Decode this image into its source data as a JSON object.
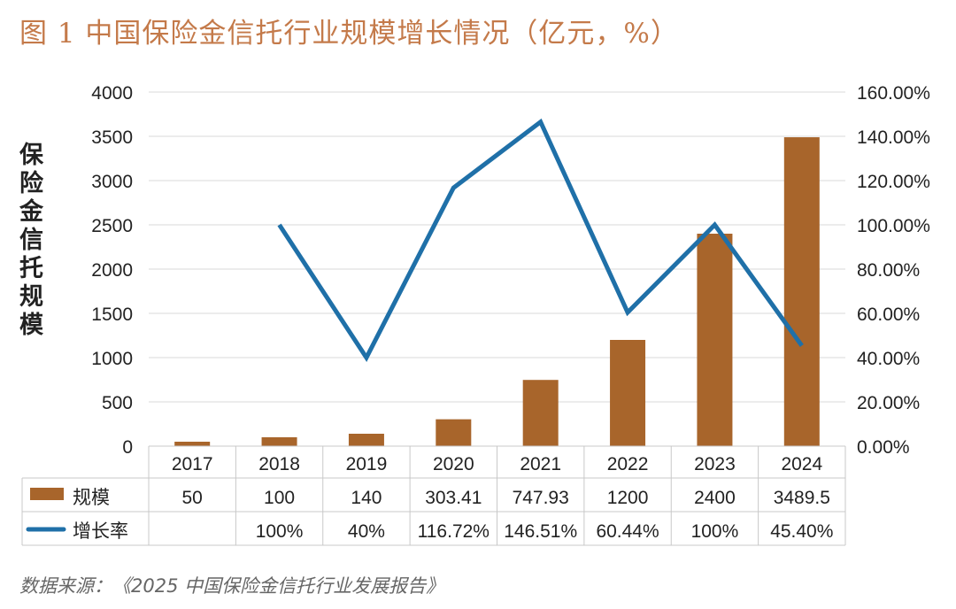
{
  "title": "图 1  中国保险金信托行业规模增长情况（亿元，%）",
  "source": "数据来源：《2025 中国保险金信托行业发展报告》",
  "colors": {
    "bar": "#a8652b",
    "line": "#1f70a8",
    "title": "#c47a4a",
    "grid": "#d9d9d9"
  },
  "chart_data": {
    "type": "bar+line",
    "title": "图 1  中国保险金信托行业规模增长情况（亿元，%）",
    "ylabel": "保险金信托规模",
    "categories": [
      "2017",
      "2018",
      "2019",
      "2020",
      "2021",
      "2022",
      "2023",
      "2024"
    ],
    "ylim": [
      0,
      4000
    ],
    "yticks": [
      "0",
      "500",
      "1000",
      "1500",
      "2000",
      "2500",
      "3000",
      "3500",
      "4000"
    ],
    "y2lim": [
      0,
      160
    ],
    "y2ticks": [
      "0.00%",
      "20.00%",
      "40.00%",
      "60.00%",
      "80.00%",
      "100.00%",
      "120.00%",
      "140.00%",
      "160.00%"
    ],
    "grid": true,
    "legend": "data-table-bottom",
    "series": [
      {
        "name": "规模",
        "type": "bar",
        "axis": "left",
        "values": [
          50,
          100,
          140,
          303.41,
          747.93,
          1200,
          2400,
          3489.5
        ],
        "labels": [
          "50",
          "100",
          "140",
          "303.41",
          "747.93",
          "1200",
          "2400",
          "3489.5"
        ]
      },
      {
        "name": "增长率",
        "type": "line",
        "axis": "right",
        "values": [
          null,
          100,
          40,
          116.72,
          146.51,
          60.44,
          100,
          45.4
        ],
        "labels": [
          "",
          "100%",
          "40%",
          "116.72%",
          "146.51%",
          "60.44%",
          "100%",
          "45.40%"
        ]
      }
    ]
  }
}
